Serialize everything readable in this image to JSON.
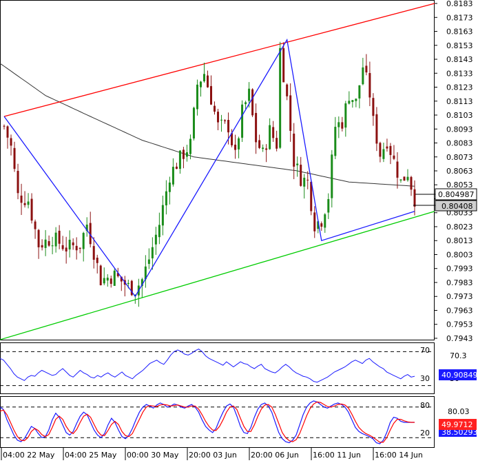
{
  "colors": {
    "background": "#ffffff",
    "frame": "#000000",
    "bull_candle": "#1a8c1a",
    "bear_candle": "#8b1010",
    "moving_average": "#333333",
    "upper_channel": "#ff0000",
    "lower_channel": "#00cc00",
    "zigzag": "#1a1aff",
    "rsi_line": "#1a1aff",
    "stoch_main": "#1a1aff",
    "stoch_signal": "#ff0000",
    "dashed_level": "#000000"
  },
  "price_panel": {
    "price_tags": {
      "upper": "0.804987",
      "lower": "0.80408"
    }
  },
  "rsi_panel": {
    "level_labels": [
      "70",
      "30"
    ],
    "right_labels": [
      "70.3",
      "30"
    ],
    "value_tag": "40.90849"
  },
  "stoch_panel": {
    "level_labels": [
      "80",
      "20"
    ],
    "right_labels": [
      "80.03",
      "20"
    ],
    "value_tag_main": "49.9712",
    "value_tag_back": "38.50293"
  },
  "chart_data": [
    {
      "type": "candlestick",
      "panel": "price",
      "y_ticks": [
        "0.8183",
        "0.8173",
        "0.8163",
        "0.8153",
        "0.8143",
        "0.8133",
        "0.8123",
        "0.8113",
        "0.8103",
        "0.8093",
        "0.8083",
        "0.8073",
        "0.8063",
        "0.8053",
        "0.8043",
        "0.8033",
        "0.8023",
        "0.8013",
        "0.8003",
        "0.7993",
        "0.7983",
        "0.7973",
        "0.7963",
        "0.7953",
        "0.7943"
      ],
      "ylim": [
        0.7942,
        0.8184
      ],
      "x_labels": [
        "04:00 22 May",
        "04:00 25 May",
        "00:00 30 May",
        "20:00 03 Jun",
        "20:00 06 Jun",
        "16:00 11 Jun",
        "16:00 14 Jun"
      ],
      "candle_count": 120,
      "anchors": [
        {
          "i": 0,
          "v": 0.8095
        },
        {
          "i": 2,
          "v": 0.808
        },
        {
          "i": 4,
          "v": 0.8045
        },
        {
          "i": 7,
          "v": 0.8042
        },
        {
          "i": 10,
          "v": 0.801
        },
        {
          "i": 14,
          "v": 0.8015
        },
        {
          "i": 18,
          "v": 0.8008
        },
        {
          "i": 22,
          "v": 0.801
        },
        {
          "i": 24,
          "v": 0.8025
        },
        {
          "i": 28,
          "v": 0.7985
        },
        {
          "i": 32,
          "v": 0.7988
        },
        {
          "i": 36,
          "v": 0.798
        },
        {
          "i": 38,
          "v": 0.7978
        },
        {
          "i": 40,
          "v": 0.7985
        },
        {
          "i": 42,
          "v": 0.8
        },
        {
          "i": 45,
          "v": 0.8025
        },
        {
          "i": 48,
          "v": 0.806
        },
        {
          "i": 51,
          "v": 0.8072
        },
        {
          "i": 54,
          "v": 0.8082
        },
        {
          "i": 56,
          "v": 0.8125
        },
        {
          "i": 58,
          "v": 0.8133
        },
        {
          "i": 60,
          "v": 0.8115
        },
        {
          "i": 62,
          "v": 0.8095
        },
        {
          "i": 65,
          "v": 0.8095
        },
        {
          "i": 67,
          "v": 0.8073
        },
        {
          "i": 69,
          "v": 0.8105
        },
        {
          "i": 71,
          "v": 0.8118
        },
        {
          "i": 73,
          "v": 0.8085
        },
        {
          "i": 75,
          "v": 0.8075
        },
        {
          "i": 77,
          "v": 0.8092
        },
        {
          "i": 79,
          "v": 0.8082
        },
        {
          "i": 80,
          "v": 0.815
        },
        {
          "i": 82,
          "v": 0.8115
        },
        {
          "i": 84,
          "v": 0.807
        },
        {
          "i": 86,
          "v": 0.8058
        },
        {
          "i": 88,
          "v": 0.8055
        },
        {
          "i": 90,
          "v": 0.8025
        },
        {
          "i": 92,
          "v": 0.8028
        },
        {
          "i": 94,
          "v": 0.8045
        },
        {
          "i": 96,
          "v": 0.8095
        },
        {
          "i": 98,
          "v": 0.8098
        },
        {
          "i": 100,
          "v": 0.8118
        },
        {
          "i": 102,
          "v": 0.8112
        },
        {
          "i": 104,
          "v": 0.8138
        },
        {
          "i": 106,
          "v": 0.8118
        },
        {
          "i": 107,
          "v": 0.8098
        },
        {
          "i": 109,
          "v": 0.8075
        },
        {
          "i": 111,
          "v": 0.8085
        },
        {
          "i": 113,
          "v": 0.807
        },
        {
          "i": 115,
          "v": 0.8055
        },
        {
          "i": 117,
          "v": 0.8062
        },
        {
          "i": 119,
          "v": 0.8043
        }
      ],
      "moving_average_anchors": [
        {
          "i": 0,
          "v": 0.8138
        },
        {
          "i": 12,
          "v": 0.8117
        },
        {
          "i": 25,
          "v": 0.8102
        },
        {
          "i": 40,
          "v": 0.8085
        },
        {
          "i": 55,
          "v": 0.8073
        },
        {
          "i": 70,
          "v": 0.8068
        },
        {
          "i": 85,
          "v": 0.8063
        },
        {
          "i": 100,
          "v": 0.8055
        },
        {
          "i": 119,
          "v": 0.8052
        }
      ],
      "upper_channel": [
        {
          "i": 0,
          "v": 0.8102
        },
        {
          "i": 120,
          "v": 0.8183
        }
      ],
      "lower_channel": [
        {
          "i": 0,
          "v": 0.7942
        },
        {
          "i": 120,
          "v": 0.8034
        }
      ],
      "zigzag": [
        {
          "i": 0,
          "v": 0.8102
        },
        {
          "i": 38,
          "v": 0.7973
        },
        {
          "i": 82,
          "v": 0.8157
        },
        {
          "i": 92,
          "v": 0.8013
        },
        {
          "i": 119,
          "v": 0.8034
        }
      ]
    },
    {
      "type": "line",
      "panel": "rsi",
      "ylim": [
        20,
        80
      ],
      "levels": [
        70,
        30
      ],
      "values": [
        62,
        60,
        55,
        50,
        44,
        40,
        38,
        36,
        40,
        42,
        41,
        45,
        48,
        46,
        44,
        42,
        43,
        47,
        50,
        46,
        42,
        40,
        44,
        48,
        45,
        43,
        40,
        39,
        42,
        40,
        43,
        45,
        42,
        40,
        43,
        46,
        42,
        40,
        38,
        42,
        45,
        48,
        52,
        56,
        58,
        60,
        57,
        55,
        60,
        66,
        70,
        72,
        70,
        67,
        66,
        68,
        71,
        73,
        70,
        65,
        62,
        60,
        58,
        56,
        54,
        58,
        55,
        52,
        55,
        58,
        56,
        55,
        52,
        50,
        53,
        55,
        50,
        48,
        46,
        45,
        48,
        52,
        55,
        52,
        48,
        45,
        43,
        41,
        40,
        38,
        35,
        34,
        36,
        38,
        40,
        43,
        46,
        48,
        50,
        52,
        55,
        58,
        60,
        58,
        56,
        60,
        62,
        58,
        55,
        52,
        50,
        46,
        44,
        42,
        40,
        38,
        41,
        43,
        40,
        41
      ]
    },
    {
      "type": "line",
      "panel": "stochastic",
      "ylim": [
        0,
        100
      ],
      "levels": [
        80,
        20
      ],
      "series": [
        {
          "values": [
            80,
            75,
            55,
            40,
            25,
            15,
            12,
            18,
            30,
            42,
            38,
            28,
            20,
            22,
            35,
            55,
            68,
            60,
            45,
            30,
            25,
            32,
            48,
            62,
            70,
            65,
            50,
            35,
            25,
            20,
            28,
            45,
            58,
            50,
            35,
            22,
            18,
            25,
            38,
            55,
            70,
            80,
            85,
            82,
            78,
            84,
            88,
            85,
            80,
            82,
            86,
            84,
            80,
            78,
            82,
            85,
            80,
            70,
            55,
            42,
            35,
            30,
            38,
            55,
            70,
            82,
            86,
            80,
            62,
            42,
            30,
            28,
            40,
            60,
            76,
            85,
            88,
            82,
            70,
            50,
            30,
            18,
            12,
            10,
            15,
            25,
            45,
            65,
            80,
            88,
            92,
            90,
            85,
            80,
            78,
            82,
            86,
            88,
            85,
            80,
            70,
            55,
            40,
            32,
            28,
            25,
            22,
            18,
            10,
            8,
            15,
            30,
            50,
            60,
            58,
            52,
            50,
            50,
            50,
            50
          ]
        },
        {
          "values": [
            72,
            74,
            65,
            50,
            35,
            22,
            15,
            14,
            20,
            32,
            38,
            34,
            26,
            22,
            26,
            40,
            56,
            62,
            56,
            42,
            32,
            28,
            36,
            50,
            62,
            66,
            60,
            46,
            33,
            25,
            24,
            34,
            46,
            52,
            46,
            32,
            24,
            22,
            28,
            42,
            56,
            70,
            80,
            83,
            82,
            81,
            84,
            85,
            84,
            82,
            83,
            84,
            82,
            80,
            80,
            82,
            82,
            76,
            65,
            52,
            42,
            35,
            34,
            42,
            55,
            70,
            80,
            82,
            75,
            58,
            42,
            32,
            32,
            45,
            62,
            76,
            84,
            85,
            80,
            66,
            48,
            30,
            20,
            14,
            12,
            16,
            28,
            45,
            63,
            77,
            86,
            90,
            89,
            85,
            81,
            80,
            82,
            85,
            86,
            84,
            78,
            66,
            52,
            40,
            33,
            28,
            25,
            21,
            16,
            11,
            11,
            20,
            35,
            48,
            56,
            56,
            53,
            51,
            50,
            50
          ]
        }
      ]
    }
  ]
}
